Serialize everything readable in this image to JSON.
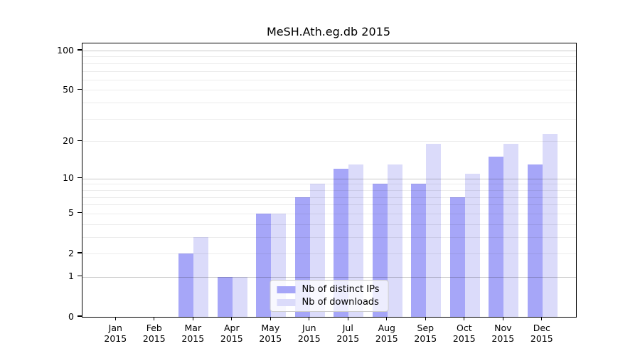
{
  "chart_data": {
    "type": "bar",
    "title": "MeSH.Ath.eg.db 2015",
    "categories": [
      "Jan",
      "Feb",
      "Mar",
      "Apr",
      "May",
      "Jun",
      "Jul",
      "Aug",
      "Sep",
      "Oct",
      "Nov",
      "Dec"
    ],
    "x_year_label": "2015",
    "series": [
      {
        "name": "Nb of distinct IPs",
        "color": "#a6a6f8",
        "values": [
          0,
          0,
          2,
          1,
          5,
          7,
          12,
          9,
          9,
          7,
          15,
          13
        ]
      },
      {
        "name": "Nb of downloads",
        "color": "#dbdbfa",
        "values": [
          0,
          0,
          3,
          1,
          5,
          9,
          13,
          13,
          19,
          11,
          19,
          23
        ]
      }
    ],
    "y_ticks": [
      0,
      1,
      2,
      5,
      10,
      20,
      50,
      100
    ],
    "major_gridlines": [
      1,
      10,
      100
    ],
    "minor_gridlines": [
      2,
      3,
      4,
      5,
      6,
      7,
      8,
      9,
      20,
      30,
      40,
      50,
      60,
      70,
      80,
      90
    ],
    "scale": "log10(1+x)",
    "ylim": [
      0,
      113
    ],
    "grid": true,
    "legend_position": "bottom-center",
    "colors": {
      "axis": "#000000",
      "minor_grid": "#ececec",
      "major_grid": "#c9c9c9",
      "background": "#ffffff",
      "legend_border": "#cccccc"
    }
  }
}
